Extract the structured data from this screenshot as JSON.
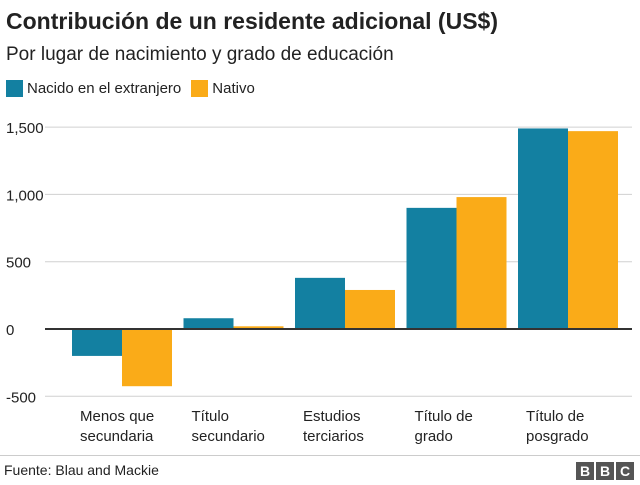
{
  "chart_data": {
    "type": "bar",
    "title": "Contribución de un residente adicional (US$)",
    "subtitle": "Por lugar de nacimiento y grado de educación",
    "categories": [
      [
        "Menos que",
        "secundaria"
      ],
      [
        "Título",
        "secundario"
      ],
      [
        "Estudios",
        "terciarios"
      ],
      [
        "Título de",
        "grado"
      ],
      [
        "Título de",
        "posgrado"
      ]
    ],
    "series": [
      {
        "name": "Nacido en el extranjero",
        "color": "#1380a1",
        "values": [
          -200,
          80,
          380,
          900,
          1490
        ]
      },
      {
        "name": "Nativo",
        "color": "#faab18",
        "values": [
          -425,
          20,
          290,
          980,
          1470
        ]
      }
    ],
    "yticks": [
      -500,
      0,
      500,
      1000,
      1500
    ],
    "ytick_labels": [
      "-500",
      "0",
      "500",
      "1,000",
      "1,500"
    ],
    "ylim": [
      -500,
      1560
    ],
    "grid": true,
    "legend_placement": "top-left"
  },
  "footer": {
    "source": "Fuente: Blau and Mackie",
    "logo": "BBC"
  }
}
